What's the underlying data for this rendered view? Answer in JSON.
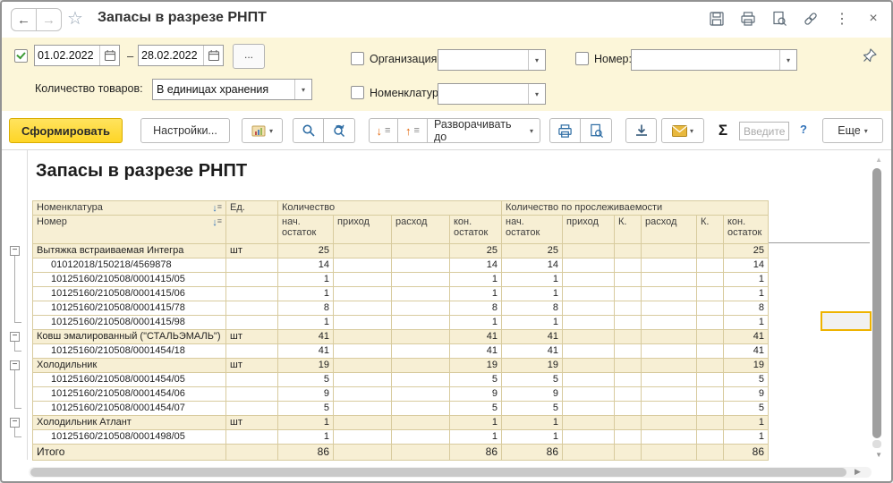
{
  "window": {
    "title": "Запасы в разрезе РНПТ",
    "nav": {
      "back": "←",
      "forward": "→"
    },
    "star": "☆",
    "topbar_icons": [
      "save-icon",
      "print-icon",
      "preview-icon",
      "link-icon",
      "more-dots-icon",
      "close-icon"
    ],
    "more_dots": "⋮",
    "close": "×"
  },
  "filters": {
    "period": {
      "checked": true,
      "from": "01.02.2022",
      "dash": "–",
      "to": "28.02.2022",
      "more_label": "..."
    },
    "quantity_label": "Количество товаров:",
    "quantity_value": "В единицах хранения",
    "organization_label": "Организация:",
    "nomenclature_label": "Номенклатура:",
    "number_label": "Номер:",
    "dropdown_arrow": "▾"
  },
  "toolbar": {
    "generate_label": "Сформировать",
    "settings_label": "Настройки...",
    "expand_to_label": "Разворачивать до",
    "expand_arrow_down": "↓",
    "collapse_arrow_up": "↑",
    "group_lines": "≡",
    "sigma_label": "Σ",
    "search_placeholder": "Введите ...",
    "help_label": "?",
    "more_label": "Еще",
    "dropdown_arrow": "▾",
    "icons": [
      "report-variants-icon",
      "find-icon",
      "find-next-icon",
      "print-icon",
      "print-preview-icon",
      "save-file-icon",
      "mail-icon"
    ]
  },
  "report": {
    "title": "Запасы в разрезе РНПТ",
    "header": {
      "col_nomenclature": "Номенклатура",
      "col_number": "Номер",
      "col_unit": "Ед.",
      "group_quantity": "Количество",
      "group_traceable": "Количество по прослеживаемости",
      "sub_quantity": [
        "нач. остаток",
        "приход",
        "расход",
        "кон. остаток"
      ],
      "sub_traceable": [
        "нач. остаток",
        "приход",
        "К.",
        "расход",
        "К.",
        "кон. остаток"
      ],
      "sort_arrow": "↓",
      "sort_lines": "≡"
    },
    "rows": [
      {
        "type": "group",
        "name": "Вытяжка встраиваемая Интегра",
        "unit": "шт",
        "q": [
          "25",
          "",
          "",
          "25"
        ],
        "t": [
          "25",
          "",
          "",
          "",
          "",
          "25"
        ]
      },
      {
        "type": "detail",
        "name": "01012018/150218/4569878",
        "unit": "",
        "q": [
          "14",
          "",
          "",
          "14"
        ],
        "t": [
          "14",
          "",
          "",
          "",
          "",
          "14"
        ]
      },
      {
        "type": "detail",
        "name": "10125160/210508/0001415/05",
        "unit": "",
        "q": [
          "1",
          "",
          "",
          "1"
        ],
        "t": [
          "1",
          "",
          "",
          "",
          "",
          "1"
        ]
      },
      {
        "type": "detail",
        "name": "10125160/210508/0001415/06",
        "unit": "",
        "q": [
          "1",
          "",
          "",
          "1"
        ],
        "t": [
          "1",
          "",
          "",
          "",
          "",
          "1"
        ]
      },
      {
        "type": "detail",
        "name": "10125160/210508/0001415/78",
        "unit": "",
        "q": [
          "8",
          "",
          "",
          "8"
        ],
        "t": [
          "8",
          "",
          "",
          "",
          "",
          "8"
        ]
      },
      {
        "type": "detail",
        "name": "10125160/210508/0001415/98",
        "unit": "",
        "q": [
          "1",
          "",
          "",
          "1"
        ],
        "t": [
          "1",
          "",
          "",
          "",
          "",
          "1"
        ]
      },
      {
        "type": "group",
        "name": "Ковш эмалированный (\"СТАЛЬЭМАЛЬ\")",
        "unit": "шт",
        "q": [
          "41",
          "",
          "",
          "41"
        ],
        "t": [
          "41",
          "",
          "",
          "",
          "",
          "41"
        ]
      },
      {
        "type": "detail",
        "name": "10125160/210508/0001454/18",
        "unit": "",
        "q": [
          "41",
          "",
          "",
          "41"
        ],
        "t": [
          "41",
          "",
          "",
          "",
          "",
          "41"
        ]
      },
      {
        "type": "group",
        "name": "Холодильник",
        "unit": "шт",
        "q": [
          "19",
          "",
          "",
          "19"
        ],
        "t": [
          "19",
          "",
          "",
          "",
          "",
          "19"
        ]
      },
      {
        "type": "detail",
        "name": "10125160/210508/0001454/05",
        "unit": "",
        "q": [
          "5",
          "",
          "",
          "5"
        ],
        "t": [
          "5",
          "",
          "",
          "",
          "",
          "5"
        ]
      },
      {
        "type": "detail",
        "name": "10125160/210508/0001454/06",
        "unit": "",
        "q": [
          "9",
          "",
          "",
          "9"
        ],
        "t": [
          "9",
          "",
          "",
          "",
          "",
          "9"
        ]
      },
      {
        "type": "detail",
        "name": "10125160/210508/0001454/07",
        "unit": "",
        "q": [
          "5",
          "",
          "",
          "5"
        ],
        "t": [
          "5",
          "",
          "",
          "",
          "",
          "5"
        ]
      },
      {
        "type": "group",
        "name": "Холодильник Атлант",
        "unit": "шт",
        "q": [
          "1",
          "",
          "",
          "1"
        ],
        "t": [
          "1",
          "",
          "",
          "",
          "",
          "1"
        ]
      },
      {
        "type": "detail",
        "name": "10125160/210508/0001498/05",
        "unit": "",
        "q": [
          "1",
          "",
          "",
          "1"
        ],
        "t": [
          "1",
          "",
          "",
          "",
          "",
          "1"
        ]
      }
    ],
    "total": {
      "label": "Итого",
      "q": [
        "86",
        "",
        "",
        "86"
      ],
      "t": [
        "86",
        "",
        "",
        "",
        "",
        "86"
      ]
    },
    "colors": {
      "header_bg": "#f7efd4",
      "grid_line": "#d8cb9e",
      "accent_yellow": "#fed526",
      "selection_border": "#eeb300"
    }
  }
}
